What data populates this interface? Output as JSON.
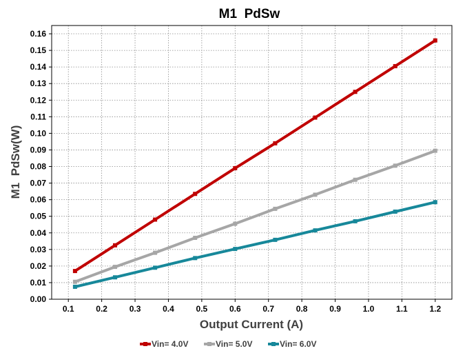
{
  "chart_data": {
    "type": "line",
    "title": "M1  PdSw",
    "xlabel": "Output Current (A)",
    "ylabel": "M1  PdSw(W)",
    "xlim": [
      0.05,
      1.25
    ],
    "ylim": [
      0,
      0.165
    ],
    "x_ticks": [
      "0.1",
      "0.2",
      "0.3",
      "0.4",
      "0.5",
      "0.6",
      "0.7",
      "0.8",
      "0.9",
      "1.0",
      "1.1",
      "1.2"
    ],
    "y_ticks": [
      "0.00",
      "0.01",
      "0.02",
      "0.03",
      "0.04",
      "0.05",
      "0.06",
      "0.07",
      "0.08",
      "0.09",
      "0.10",
      "0.11",
      "0.12",
      "0.13",
      "0.14",
      "0.15",
      "0.16"
    ],
    "grid": true,
    "legend_position": "bottom",
    "x": [
      0.12,
      0.24,
      0.36,
      0.48,
      0.6,
      0.72,
      0.84,
      0.96,
      1.08,
      1.2
    ],
    "series": [
      {
        "name": "Vin= 4.0V",
        "color": "#c00000",
        "values": [
          0.017,
          0.0325,
          0.048,
          0.0635,
          0.079,
          0.094,
          0.1095,
          0.125,
          0.1405,
          0.156
        ]
      },
      {
        "name": "Vin= 5.0V",
        "color": "#a6a6a6",
        "values": [
          0.0105,
          0.0195,
          0.028,
          0.037,
          0.0455,
          0.0545,
          0.063,
          0.072,
          0.0805,
          0.0895
        ]
      },
      {
        "name": "Vin= 6.0V",
        "color": "#17889a",
        "values": [
          0.0075,
          0.0132,
          0.019,
          0.0248,
          0.0303,
          0.0358,
          0.0415,
          0.047,
          0.0528,
          0.0585
        ]
      }
    ]
  }
}
